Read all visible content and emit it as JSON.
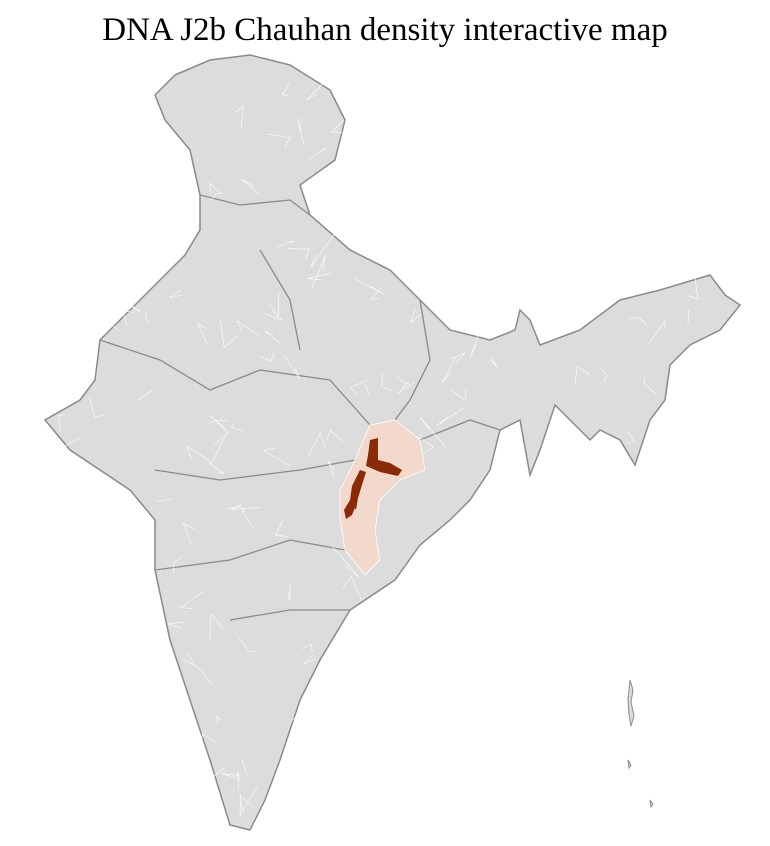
{
  "title": "DNA J2b Chauhan density interactive map",
  "colors": {
    "land": "#dcdcdc",
    "border": "#8a8a8a",
    "district_border": "#ffffff",
    "low_density": "#f2d9cc",
    "high_density": "#8b2a06"
  },
  "highlighted_regions": [
    {
      "level": "low"
    },
    {
      "level": "high"
    },
    {
      "level": "high"
    },
    {
      "level": "high"
    }
  ]
}
